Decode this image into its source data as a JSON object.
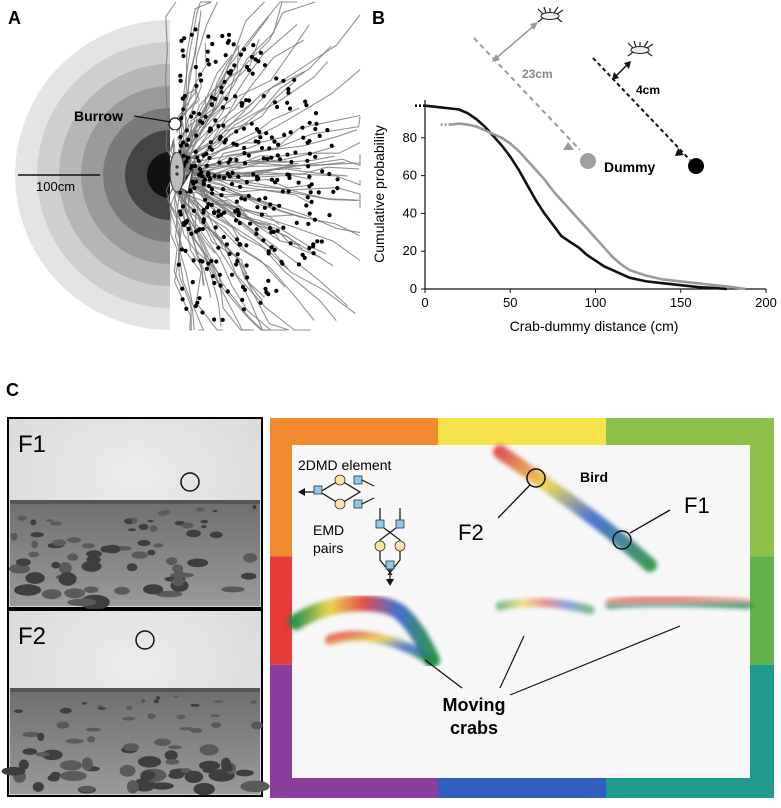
{
  "panels": {
    "a": {
      "letter": "A",
      "burrow_label": "Burrow",
      "scale_label": "100cm",
      "ring_count": 6
    },
    "b": {
      "letter": "B",
      "offset_bird_label": "23cm",
      "near_bird_label": "4cm",
      "dummy_label": "Dummy",
      "colors": {
        "black": "#111111",
        "gray": "#9a9a9a"
      }
    },
    "c": {
      "letter": "C",
      "frame1_label": "F1",
      "frame2_label": "F2",
      "element_label": "2DMD element",
      "emd_label": "EMD pairs",
      "bird_label": "Bird",
      "map_f1_label": "F1",
      "map_f2_label": "F2",
      "crabs_label_line1": "Moving",
      "crabs_label_line2": "crabs",
      "border_colors": {
        "top": [
          "#f28a30",
          "#f6e24a",
          "#8dc14a"
        ],
        "right": [
          "#8dc14a",
          "#5fb34a",
          "#1f9a8c"
        ],
        "bottom": [
          "#8a3f9c",
          "#2f5fbf",
          "#1f9a8c"
        ],
        "left": [
          "#f28a30",
          "#e83b3b",
          "#8a3f9c"
        ]
      }
    }
  },
  "chart_data": {
    "type": "line",
    "title": "",
    "xlabel": "Crab-dummy distance (cm)",
    "ylabel": "Cumulative probability",
    "xlim": [
      0,
      200
    ],
    "ylim": [
      0,
      100
    ],
    "x_ticks": [
      "0",
      "50",
      "100",
      "150",
      "200"
    ],
    "y_ticks": [
      "0",
      "20",
      "40",
      "60",
      "80"
    ],
    "legend": "none",
    "series": [
      {
        "color": "#111111",
        "x": [
          0,
          5,
          10,
          15,
          20,
          25,
          30,
          35,
          40,
          45,
          50,
          55,
          60,
          65,
          70,
          75,
          80,
          85,
          90,
          95,
          100,
          105,
          110,
          115,
          120,
          125,
          130,
          140,
          150,
          160,
          170,
          177
        ],
        "y": [
          97,
          96.5,
          96,
          95.5,
          95,
          93,
          90,
          86,
          81,
          76,
          70,
          63,
          55,
          47,
          40,
          34,
          28,
          25,
          22,
          18,
          15,
          12,
          10,
          8,
          6,
          5,
          4,
          3,
          2,
          1,
          0.5,
          0
        ]
      },
      {
        "color": "#9a9a9a",
        "x": [
          15,
          20,
          25,
          30,
          35,
          40,
          45,
          50,
          55,
          60,
          65,
          70,
          75,
          80,
          85,
          90,
          95,
          100,
          105,
          110,
          115,
          120,
          130,
          140,
          150,
          160,
          170,
          180,
          188
        ],
        "y": [
          87,
          87.5,
          87,
          86,
          84,
          82,
          80,
          77,
          73,
          68,
          63,
          58,
          52,
          47,
          42,
          37,
          32,
          27,
          22,
          17,
          13,
          10,
          7,
          5,
          4,
          3,
          2,
          1,
          0
        ]
      }
    ]
  }
}
